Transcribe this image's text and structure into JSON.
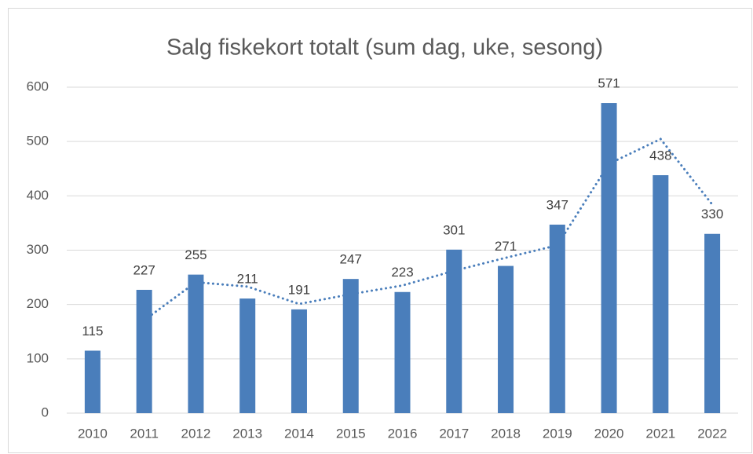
{
  "chart_data": {
    "type": "bar",
    "title": "Salg fiskekort totalt (sum dag, uke, sesong)",
    "categories": [
      "2010",
      "2011",
      "2012",
      "2013",
      "2014",
      "2015",
      "2016",
      "2017",
      "2018",
      "2019",
      "2020",
      "2021",
      "2022"
    ],
    "values": [
      115,
      227,
      255,
      211,
      191,
      247,
      223,
      301,
      271,
      347,
      571,
      438,
      330
    ],
    "color": "#4a7ebb",
    "trendline": {
      "values": [
        null,
        171,
        241,
        233,
        201,
        219,
        235,
        262,
        286,
        309,
        459,
        504.5,
        384
      ],
      "color": "#4a7ebb",
      "style": "dotted"
    },
    "ylim": [
      0,
      600
    ],
    "yticks": [
      0,
      100,
      200,
      300,
      400,
      500,
      600
    ],
    "grid": true
  }
}
